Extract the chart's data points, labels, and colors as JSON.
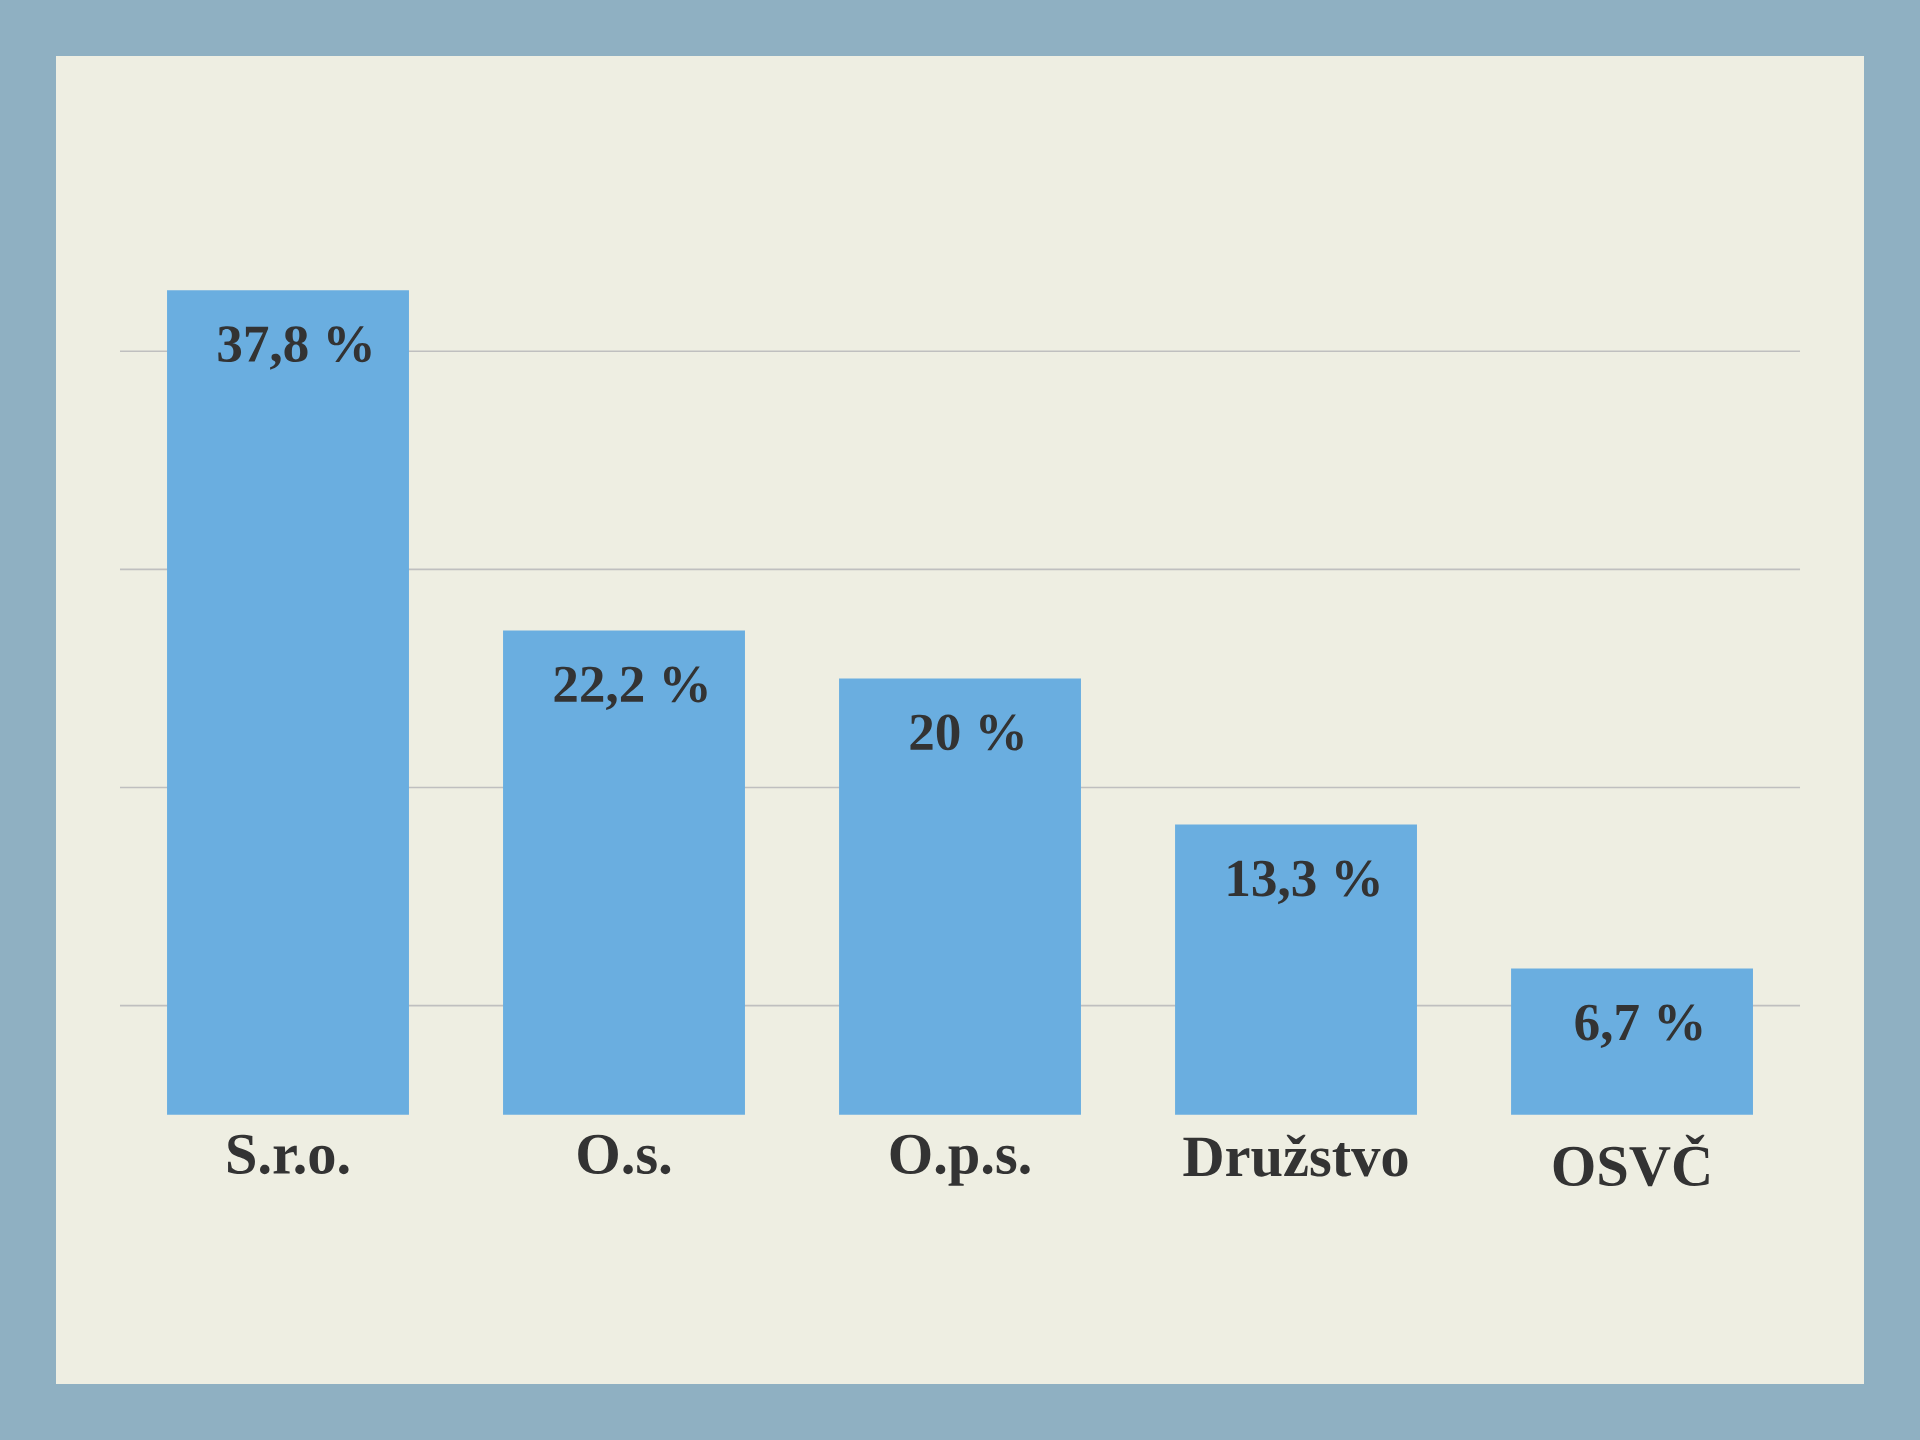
{
  "chart_data": {
    "type": "bar",
    "categories": [
      "S.r.o.",
      "O.s.",
      "O.p.s.",
      "Družstvo",
      "OSVČ"
    ],
    "values": [
      37.8,
      22.2,
      20,
      13.3,
      6.7
    ],
    "value_labels": [
      "37,8 %",
      "22,2 %",
      "20 %",
      "13,3 %",
      "6,7 %"
    ],
    "color": "#6aaee0",
    "yticks": [
      {
        "value": 5,
        "label": null
      },
      {
        "value": 15,
        "label": null
      },
      {
        "value": 25,
        "label": null
      },
      {
        "value": 35,
        "label": null
      }
    ],
    "grid": "y",
    "tick_labels": "x"
  }
}
